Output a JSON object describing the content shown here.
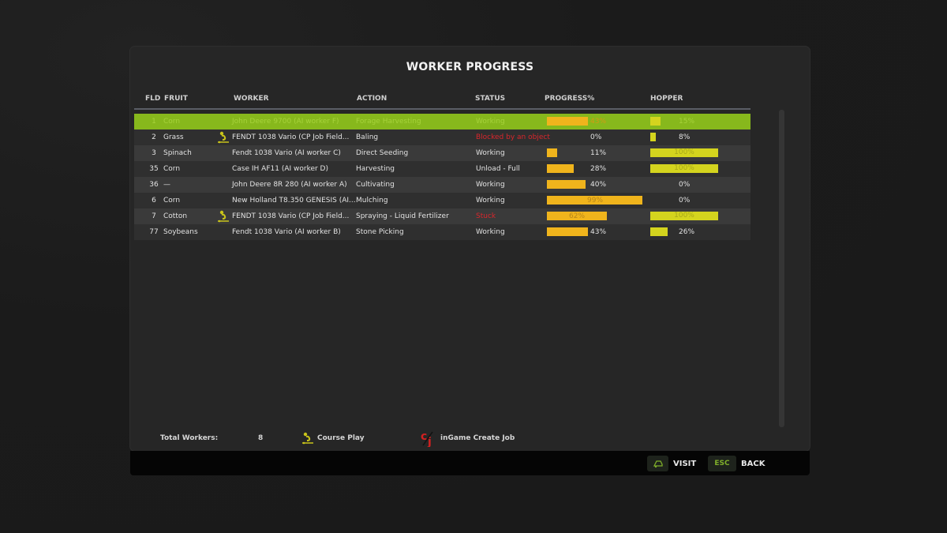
{
  "title": "WORKER PROGRESS",
  "columns": {
    "fld": "FLD",
    "fruit": "FRUIT",
    "worker": "WORKER",
    "action": "ACTION",
    "status": "STATUS",
    "progress": "PROGRESS%",
    "hopper": "HOPPER"
  },
  "rows": [
    {
      "fld": "1",
      "fruit": "Corn",
      "worker": "John Deere 9700 (AI worker F)",
      "cp": false,
      "action": "Forage Harvesting",
      "status": "Working",
      "status_alert": false,
      "progress": 43,
      "progress_label": "43%",
      "hopper": 15,
      "hopper_label": "15%",
      "selected": true
    },
    {
      "fld": "2",
      "fruit": "Grass",
      "worker": "FENDT 1038 Vario  (CP Job Field...",
      "cp": true,
      "action": "Baling",
      "status": "Blocked by an object",
      "status_alert": true,
      "progress": 0,
      "progress_label": "0%",
      "hopper": 8,
      "hopper_label": "8%",
      "selected": false
    },
    {
      "fld": "3",
      "fruit": "Spinach",
      "worker": "Fendt 1038 Vario (AI worker C)",
      "cp": false,
      "action": "Direct Seeding",
      "status": "Working",
      "status_alert": false,
      "progress": 11,
      "progress_label": "11%",
      "hopper": 100,
      "hopper_label": "100%",
      "selected": false
    },
    {
      "fld": "35",
      "fruit": "Corn",
      "worker": "Case IH AF11 (AI worker D)",
      "cp": false,
      "action": "Harvesting",
      "status": "Unload - Full",
      "status_alert": false,
      "progress": 28,
      "progress_label": "28%",
      "hopper": 100,
      "hopper_label": "100%",
      "selected": false
    },
    {
      "fld": "36",
      "fruit": "—",
      "worker": "John Deere 8R 280 (AI worker A)",
      "cp": false,
      "action": "Cultivating",
      "status": "Working",
      "status_alert": false,
      "progress": 40,
      "progress_label": "40%",
      "hopper": 0,
      "hopper_label": "0%",
      "selected": false
    },
    {
      "fld": "6",
      "fruit": "Corn",
      "worker": "New Holland T8.350 GENESIS (AI...",
      "cp": false,
      "action": "Mulching",
      "status": "Working",
      "status_alert": false,
      "progress": 99,
      "progress_label": "99%",
      "hopper": 0,
      "hopper_label": "0%",
      "selected": false
    },
    {
      "fld": "7",
      "fruit": "Cotton",
      "worker": "FENDT 1038 Vario  (CP Job Field...",
      "cp": true,
      "action": "Spraying - Liquid Fertilizer",
      "status": "Stuck",
      "status_alert": true,
      "progress": 62,
      "progress_label": "62%",
      "hopper": 100,
      "hopper_label": "100%",
      "selected": false
    },
    {
      "fld": "77",
      "fruit": "Soybeans",
      "worker": "Fendt 1038 Vario (AI worker B)",
      "cp": false,
      "action": "Stone Picking",
      "status": "Working",
      "status_alert": false,
      "progress": 43,
      "progress_label": "43%",
      "hopper": 26,
      "hopper_label": "26%",
      "selected": false
    }
  ],
  "summary": {
    "total_label": "Total Workers:",
    "total_value": "8",
    "legend_cp": "Course Play",
    "legend_igcj": "inGame Create Job"
  },
  "footer": {
    "visit_key_icon": "vehicle-icon",
    "visit_label": "VISIT",
    "back_key": "ESC",
    "back_label": "BACK"
  },
  "colors": {
    "selected_row": "#87b81c",
    "progress_bar": "#f0b41c",
    "hopper_bar": "#d4d41e",
    "alert_text": "#d9262c",
    "key_accent": "#7fae2a"
  }
}
